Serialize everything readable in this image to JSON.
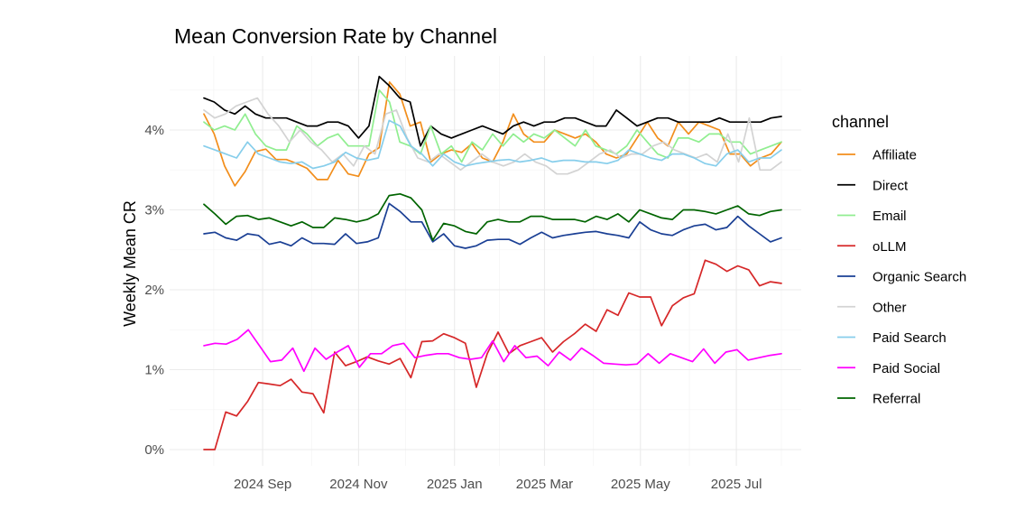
{
  "chart_data": {
    "type": "line",
    "title": "Mean Conversion Rate by Channel",
    "xlabel": "",
    "ylabel": "Weekly Mean CR",
    "ylim": [
      0,
      4.7
    ],
    "y_ticks": [
      {
        "value": 0,
        "label": "0%"
      },
      {
        "value": 1,
        "label": "1%"
      },
      {
        "value": 2,
        "label": "2%"
      },
      {
        "value": 3,
        "label": "3%"
      },
      {
        "value": 4,
        "label": "4%"
      }
    ],
    "x_week_range": [
      0,
      59
    ],
    "x_ticks": [
      {
        "week": 6.0,
        "label": "2024 Sep"
      },
      {
        "week": 15.8,
        "label": "2024 Nov"
      },
      {
        "week": 25.6,
        "label": "2025 Jan"
      },
      {
        "week": 34.8,
        "label": "2025 Mar"
      },
      {
        "week": 44.6,
        "label": "2025 May"
      },
      {
        "week": 54.4,
        "label": "2025 Jul"
      }
    ],
    "x_minor_ticks": [
      1.0,
      11.0,
      20.6,
      30.2,
      39.8,
      49.6,
      59.0
    ],
    "legend": {
      "title": "channel",
      "position": "right"
    },
    "series": [
      {
        "name": "Affiliate",
        "color": "#f28e1c",
        "values": [
          4.2,
          3.95,
          3.55,
          3.3,
          3.48,
          3.73,
          3.76,
          3.63,
          3.63,
          3.58,
          3.52,
          3.38,
          3.38,
          3.62,
          3.45,
          3.42,
          3.7,
          3.78,
          4.6,
          4.45,
          4.05,
          4.1,
          3.6,
          3.7,
          3.75,
          3.72,
          3.83,
          3.65,
          3.6,
          3.85,
          4.2,
          3.95,
          3.85,
          3.85,
          4.0,
          3.95,
          3.9,
          3.95,
          3.85,
          3.7,
          3.65,
          3.7,
          3.9,
          4.1,
          3.9,
          3.8,
          4.1,
          3.95,
          4.1,
          4.05,
          4.0,
          3.7,
          3.7,
          3.55,
          3.65,
          3.7,
          3.85
        ]
      },
      {
        "name": "Direct",
        "color": "#000000",
        "values": [
          4.4,
          4.35,
          4.25,
          4.2,
          4.3,
          4.2,
          4.15,
          4.15,
          4.15,
          4.1,
          4.05,
          4.05,
          4.1,
          4.1,
          4.05,
          3.9,
          4.05,
          4.67,
          4.55,
          4.4,
          4.35,
          3.8,
          4.05,
          3.95,
          3.9,
          3.95,
          4.0,
          4.05,
          4.0,
          3.95,
          4.05,
          4.1,
          4.05,
          4.1,
          4.1,
          4.15,
          4.15,
          4.1,
          4.05,
          4.05,
          4.25,
          4.15,
          4.05,
          4.1,
          4.15,
          4.15,
          4.1,
          4.1,
          4.1,
          4.1,
          4.15,
          4.1,
          4.1,
          4.1,
          4.1,
          4.15,
          4.17
        ]
      },
      {
        "name": "Email",
        "color": "#90ee90",
        "values": [
          4.1,
          4.0,
          4.05,
          4.0,
          4.2,
          3.95,
          3.8,
          3.75,
          3.75,
          4.05,
          3.95,
          3.8,
          3.9,
          3.95,
          3.8,
          3.8,
          3.8,
          4.5,
          4.35,
          3.85,
          3.8,
          3.7,
          4.05,
          3.7,
          3.8,
          3.6,
          3.85,
          3.75,
          3.95,
          3.8,
          3.95,
          3.85,
          3.95,
          3.9,
          4.0,
          3.9,
          3.8,
          4.0,
          3.8,
          3.75,
          3.7,
          3.8,
          4.0,
          3.85,
          3.7,
          3.65,
          3.9,
          3.9,
          3.85,
          3.95,
          3.95,
          3.85,
          3.85,
          3.7,
          3.75,
          3.8,
          3.85
        ]
      },
      {
        "name": "oLLM",
        "color": "#d62728",
        "values": [
          0.0,
          0.0,
          0.47,
          0.42,
          0.6,
          0.84,
          0.82,
          0.8,
          0.88,
          0.72,
          0.7,
          0.46,
          1.22,
          1.05,
          1.1,
          1.16,
          1.11,
          1.07,
          1.14,
          0.9,
          1.35,
          1.36,
          1.45,
          1.4,
          1.33,
          0.78,
          1.2,
          1.47,
          1.2,
          1.3,
          1.35,
          1.4,
          1.22,
          1.35,
          1.45,
          1.57,
          1.48,
          1.75,
          1.68,
          1.96,
          1.91,
          1.91,
          1.55,
          1.8,
          1.9,
          1.95,
          2.37,
          2.32,
          2.23,
          2.3,
          2.25,
          2.05,
          2.1,
          2.08
        ]
      },
      {
        "name": "Organic Search",
        "color": "#1a3f94",
        "values": [
          2.7,
          2.72,
          2.65,
          2.62,
          2.7,
          2.68,
          2.57,
          2.6,
          2.55,
          2.65,
          2.58,
          2.58,
          2.57,
          2.7,
          2.58,
          2.6,
          2.65,
          3.08,
          2.98,
          2.85,
          2.85,
          2.6,
          2.7,
          2.55,
          2.52,
          2.55,
          2.62,
          2.63,
          2.63,
          2.57,
          2.65,
          2.72,
          2.65,
          2.68,
          2.7,
          2.72,
          2.73,
          2.7,
          2.68,
          2.65,
          2.85,
          2.75,
          2.7,
          2.68,
          2.75,
          2.8,
          2.82,
          2.75,
          2.78,
          2.92,
          2.8,
          2.7,
          2.6,
          2.65
        ]
      },
      {
        "name": "Other",
        "color": "#d3d3d3",
        "values": [
          4.25,
          4.15,
          4.2,
          4.3,
          4.35,
          4.4,
          4.2,
          4.05,
          3.85,
          4.0,
          3.85,
          3.75,
          3.6,
          3.7,
          3.55,
          3.8,
          3.7,
          4.2,
          4.25,
          3.9,
          3.65,
          3.6,
          3.7,
          3.6,
          3.5,
          3.6,
          3.7,
          3.6,
          3.55,
          3.6,
          3.7,
          3.6,
          3.55,
          3.45,
          3.45,
          3.5,
          3.6,
          3.7,
          3.75,
          3.65,
          3.7,
          3.7,
          3.8,
          3.85,
          3.75,
          3.7,
          3.65,
          3.7,
          3.6,
          3.95,
          3.6,
          4.15,
          3.5,
          3.5,
          3.6
        ]
      },
      {
        "name": "Paid Search",
        "color": "#87ceeb",
        "values": [
          3.8,
          3.75,
          3.7,
          3.65,
          3.85,
          3.7,
          3.65,
          3.6,
          3.58,
          3.6,
          3.52,
          3.55,
          3.6,
          3.72,
          3.65,
          3.62,
          3.65,
          4.12,
          4.05,
          3.8,
          3.7,
          3.55,
          3.7,
          3.6,
          3.55,
          3.58,
          3.6,
          3.62,
          3.63,
          3.6,
          3.62,
          3.65,
          3.6,
          3.62,
          3.62,
          3.6,
          3.6,
          3.58,
          3.62,
          3.75,
          3.7,
          3.65,
          3.62,
          3.7,
          3.7,
          3.65,
          3.58,
          3.55,
          3.7,
          3.75,
          3.6,
          3.65,
          3.65,
          3.75
        ]
      },
      {
        "name": "Paid Social",
        "color": "#ff00ff",
        "values": [
          1.3,
          1.33,
          1.32,
          1.38,
          1.5,
          1.3,
          1.1,
          1.12,
          1.27,
          0.98,
          1.27,
          1.13,
          1.22,
          1.3,
          1.03,
          1.2,
          1.2,
          1.3,
          1.33,
          1.15,
          1.18,
          1.2,
          1.2,
          1.15,
          1.13,
          1.15,
          1.36,
          1.1,
          1.3,
          1.15,
          1.17,
          1.05,
          1.22,
          1.12,
          1.27,
          1.18,
          1.08,
          1.07,
          1.06,
          1.07,
          1.2,
          1.08,
          1.2,
          1.15,
          1.1,
          1.26,
          1.08,
          1.22,
          1.25,
          1.12,
          1.15,
          1.18,
          1.2
        ]
      },
      {
        "name": "Referral",
        "color": "#006400",
        "values": [
          3.07,
          2.95,
          2.82,
          2.92,
          2.93,
          2.88,
          2.9,
          2.85,
          2.8,
          2.85,
          2.78,
          2.78,
          2.9,
          2.88,
          2.85,
          2.88,
          2.95,
          3.18,
          3.2,
          3.15,
          3.0,
          2.62,
          2.83,
          2.8,
          2.73,
          2.7,
          2.85,
          2.88,
          2.85,
          2.85,
          2.92,
          2.92,
          2.88,
          2.88,
          2.88,
          2.85,
          2.92,
          2.88,
          2.95,
          2.85,
          3.0,
          2.95,
          2.9,
          2.88,
          3.0,
          3.0,
          2.98,
          2.95,
          3.0,
          3.05,
          2.95,
          2.93,
          2.98,
          3.0
        ]
      }
    ]
  }
}
